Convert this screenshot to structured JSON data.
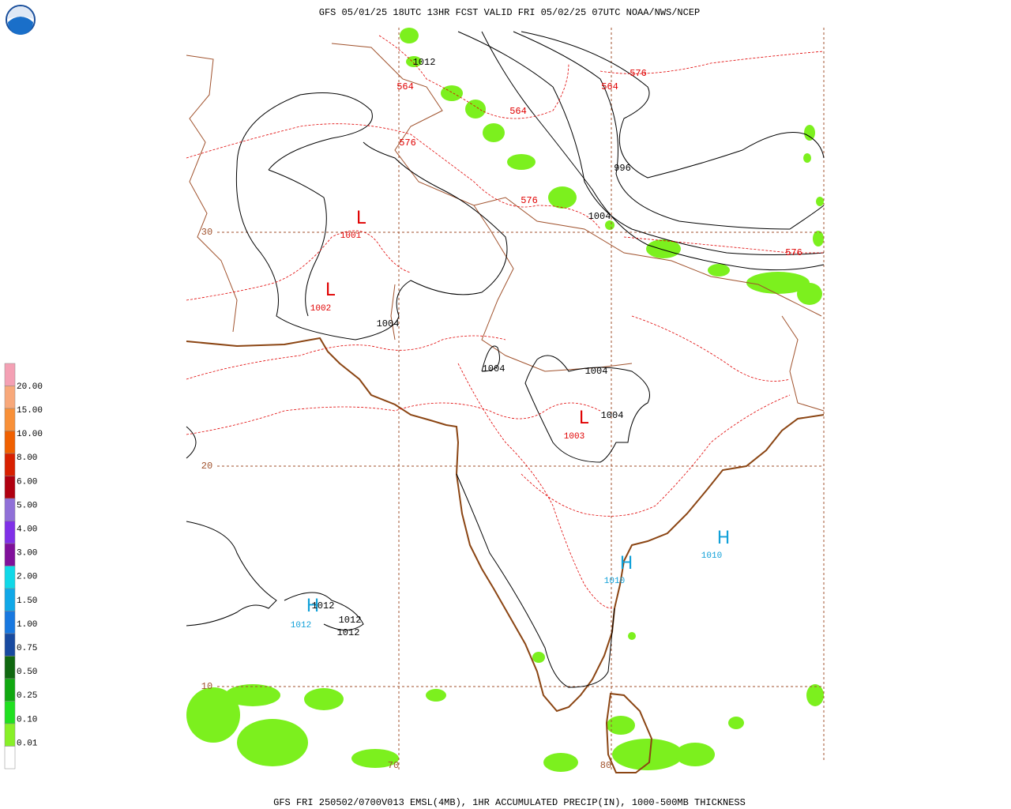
{
  "header": {
    "title": "GFS 05/01/25 18UTC 13HR FCST VALID FRI 05/02/25 07UTC NOAA/NWS/NCEP"
  },
  "footer": {
    "text": "GFS FRI 250502/0700V013 EMSL(4MB), 1HR ACCUMULATED PRECIP(IN), 1000-500MB THICKNESS"
  },
  "legend": {
    "labels": [
      "20.00",
      "15.00",
      "10.00",
      "8.00",
      "6.00",
      "5.00",
      "4.00",
      "3.00",
      "2.00",
      "1.50",
      "1.00",
      "0.75",
      "0.50",
      "0.25",
      "0.10",
      "0.01"
    ]
  },
  "grid_labels": [
    "30",
    "20",
    "10",
    "70",
    "80"
  ],
  "map_labels": [
    "1012",
    "564",
    "576",
    "564",
    "564",
    "576",
    "996",
    "576",
    "1004",
    "576",
    "L",
    "1001",
    "L",
    "1002",
    "1004",
    "1004",
    "1004",
    "1004",
    "L",
    "1003",
    "H",
    "1010",
    "H",
    "1010",
    "H",
    "1012",
    "1012",
    "1012",
    "1012"
  ]
}
